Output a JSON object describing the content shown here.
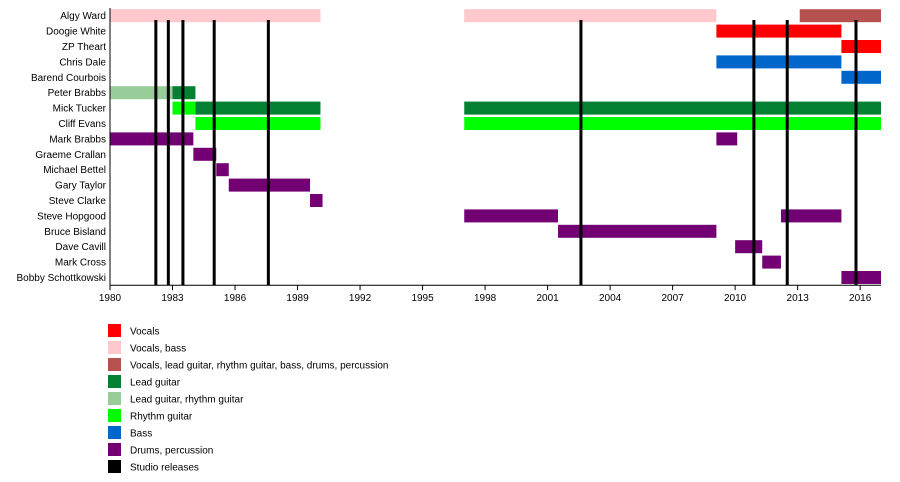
{
  "chart_data": {
    "type": "timeline",
    "x_range": [
      1980,
      2017
    ],
    "x_ticks": [
      "1980",
      "1983",
      "1986",
      "1989",
      "1992",
      "1995",
      "1998",
      "2001",
      "2004",
      "2007",
      "2010",
      "2013",
      "2016"
    ],
    "members": [
      "Algy Ward",
      "Doogie White",
      "ZP Theart",
      "Chris Dale",
      "Barend Courbois",
      "Peter Brabbs",
      "Mick Tucker",
      "Cliff Evans",
      "Mark Brabbs",
      "Graeme Crallan",
      "Michael Bettel",
      "Gary Taylor",
      "Steve Clarke",
      "Steve Hopgood",
      "Bruce Bisland",
      "Dave Cavill",
      "Mark Cross",
      "Bobby Schottkowski"
    ],
    "roles": [
      {
        "id": "vocals",
        "label": "Vocals",
        "color": "#ff0000"
      },
      {
        "id": "vocals_bass",
        "label": "Vocals, bass",
        "color": "#ffc8cc"
      },
      {
        "id": "vocals_multi",
        "label": "Vocals, lead guitar, rhythm guitar, bass, drums, percussion",
        "color": "#b5524f"
      },
      {
        "id": "lead",
        "label": "Lead guitar",
        "color": "#048032"
      },
      {
        "id": "lead_rhythm",
        "label": "Lead guitar, rhythm guitar",
        "color": "#98cc98"
      },
      {
        "id": "rhythm",
        "label": "Rhythm guitar",
        "color": "#00ff00"
      },
      {
        "id": "bass",
        "label": "Bass",
        "color": "#0066cc"
      },
      {
        "id": "drums",
        "label": "Drums, percussion",
        "color": "#730073"
      },
      {
        "id": "studio",
        "label": "Studio releases",
        "color": "#000000"
      }
    ],
    "bars": [
      {
        "member": 0,
        "role": "vocals_bass",
        "from": 1980.0,
        "to": 1990.1
      },
      {
        "member": 0,
        "role": "vocals_bass",
        "from": 1997.0,
        "to": 2009.1
      },
      {
        "member": 0,
        "role": "vocals_multi",
        "from": 2013.1,
        "to": 2017.2
      },
      {
        "member": 1,
        "role": "vocals",
        "from": 2009.1,
        "to": 2015.1
      },
      {
        "member": 2,
        "role": "vocals",
        "from": 2015.1,
        "to": 2017.2
      },
      {
        "member": 3,
        "role": "bass",
        "from": 2009.1,
        "to": 2015.1
      },
      {
        "member": 4,
        "role": "bass",
        "from": 2015.1,
        "to": 2017.2
      },
      {
        "member": 5,
        "role": "lead_rhythm",
        "from": 1980.0,
        "to": 1983.0
      },
      {
        "member": 5,
        "role": "lead",
        "from": 1983.0,
        "to": 1984.1
      },
      {
        "member": 6,
        "role": "rhythm",
        "from": 1983.0,
        "to": 1984.1
      },
      {
        "member": 6,
        "role": "lead",
        "from": 1984.1,
        "to": 1990.1
      },
      {
        "member": 6,
        "role": "lead",
        "from": 1997.0,
        "to": 2017.2
      },
      {
        "member": 7,
        "role": "rhythm",
        "from": 1984.1,
        "to": 1990.1
      },
      {
        "member": 7,
        "role": "rhythm",
        "from": 1997.0,
        "to": 2017.2
      },
      {
        "member": 8,
        "role": "drums",
        "from": 1980.0,
        "to": 1984.0
      },
      {
        "member": 8,
        "role": "drums",
        "from": 2009.1,
        "to": 2010.1
      },
      {
        "member": 9,
        "role": "drums",
        "from": 1984.0,
        "to": 1985.1
      },
      {
        "member": 10,
        "role": "drums",
        "from": 1985.1,
        "to": 1985.7
      },
      {
        "member": 11,
        "role": "drums",
        "from": 1985.7,
        "to": 1989.6
      },
      {
        "member": 12,
        "role": "drums",
        "from": 1989.6,
        "to": 1990.2
      },
      {
        "member": 13,
        "role": "drums",
        "from": 1997.0,
        "to": 2001.5
      },
      {
        "member": 13,
        "role": "drums",
        "from": 2012.2,
        "to": 2015.1
      },
      {
        "member": 14,
        "role": "drums",
        "from": 2001.5,
        "to": 2009.1
      },
      {
        "member": 15,
        "role": "drums",
        "from": 2010.0,
        "to": 2011.3
      },
      {
        "member": 16,
        "role": "drums",
        "from": 2011.3,
        "to": 2012.2
      },
      {
        "member": 17,
        "role": "drums",
        "from": 2015.1,
        "to": 2017.2
      }
    ],
    "studio_releases": [
      1982.2,
      1982.8,
      1983.5,
      1985.0,
      1987.6,
      2002.6,
      2010.9,
      2012.5,
      2015.8
    ]
  }
}
